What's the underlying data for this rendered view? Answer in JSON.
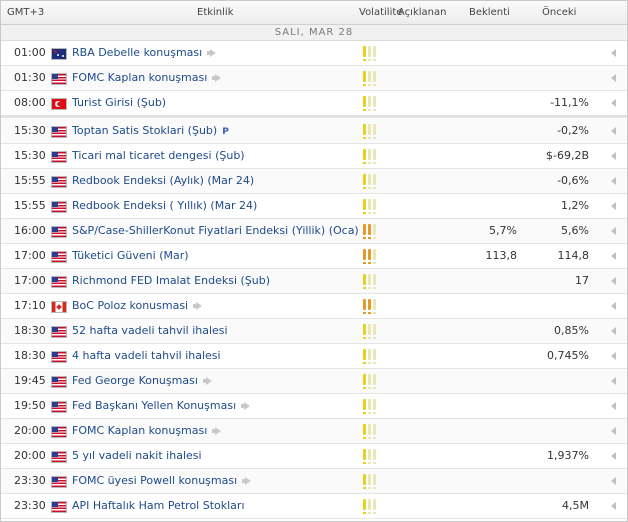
{
  "header": {
    "gmt": "GMT+3",
    "event": "Etkinlik",
    "volatility": "Volatilite",
    "actual": "Açıklanan",
    "forecast": "Beklenti",
    "previous": "Önceki"
  },
  "day_label": "SALI, MAR 28",
  "colors": {
    "event_link": "#1f4a8a",
    "volatility_low": "#e6d21a",
    "volatility_medium": "#e59a2a",
    "volatility_inactive": "#e9e6b8"
  },
  "events": [
    {
      "time": "01:00",
      "flag": "au",
      "name": "RBA Debelle konuşması",
      "speech": true,
      "volatility": 1,
      "level": "low",
      "forecast": "",
      "previous": ""
    },
    {
      "time": "01:30",
      "flag": "us",
      "name": "FOMC Kaplan konuşması",
      "speech": true,
      "volatility": 1,
      "level": "low",
      "forecast": "",
      "previous": ""
    },
    {
      "time": "08:00",
      "flag": "tr",
      "name": "Turist Girisi (Şub)",
      "speech": false,
      "volatility": 1,
      "level": "low",
      "forecast": "",
      "previous": "-11,1%"
    },
    {
      "time": "15:30",
      "flag": "us",
      "name": "Toptan Satis Stoklari (Şub)",
      "speech": false,
      "prelim": "P",
      "volatility": 1,
      "level": "low",
      "forecast": "",
      "previous": "-0,2%"
    },
    {
      "time": "15:30",
      "flag": "us",
      "name": "Ticari mal ticaret dengesi (Şub)",
      "speech": false,
      "volatility": 1,
      "level": "low",
      "forecast": "",
      "previous": "$-69,2B"
    },
    {
      "time": "15:55",
      "flag": "us",
      "name": "Redbook Endeksi (Aylık) (Mar 24)",
      "speech": false,
      "volatility": 1,
      "level": "low",
      "forecast": "",
      "previous": "-0,6%"
    },
    {
      "time": "15:55",
      "flag": "us",
      "name": "Redbook Endeksi ( Yıllık) (Mar 24)",
      "speech": false,
      "volatility": 1,
      "level": "low",
      "forecast": "",
      "previous": "1,2%"
    },
    {
      "time": "16:00",
      "flag": "us",
      "name": "S&P/Case-ShillerKonut Fiyatlari Endeksi (Yillik) (Oca)",
      "speech": false,
      "volatility": 2,
      "level": "med",
      "forecast": "5,7%",
      "previous": "5,6%"
    },
    {
      "time": "17:00",
      "flag": "us",
      "name": "Tüketici Güveni (Mar)",
      "speech": false,
      "volatility": 2,
      "level": "med",
      "forecast": "113,8",
      "previous": "114,8"
    },
    {
      "time": "17:00",
      "flag": "us",
      "name": "Richmond FED Imalat Endeksi (Şub)",
      "speech": false,
      "volatility": 1,
      "level": "low",
      "forecast": "",
      "previous": "17"
    },
    {
      "time": "17:10",
      "flag": "ca",
      "name": "BoC Poloz konusmasi",
      "speech": true,
      "volatility": 2,
      "level": "med",
      "forecast": "",
      "previous": ""
    },
    {
      "time": "18:30",
      "flag": "us",
      "name": "52 hafta vadeli tahvil ihalesi",
      "speech": false,
      "volatility": 1,
      "level": "low",
      "forecast": "",
      "previous": "0,85%"
    },
    {
      "time": "18:30",
      "flag": "us",
      "name": "4 hafta vadeli tahvil ihalesi",
      "speech": false,
      "volatility": 1,
      "level": "low",
      "forecast": "",
      "previous": "0,745%"
    },
    {
      "time": "19:45",
      "flag": "us",
      "name": "Fed George Konuşması",
      "speech": true,
      "volatility": 1,
      "level": "low",
      "forecast": "",
      "previous": ""
    },
    {
      "time": "19:50",
      "flag": "us",
      "name": "Fed Başkanı Yellen Konuşması",
      "speech": true,
      "volatility": 1,
      "level": "low",
      "forecast": "",
      "previous": ""
    },
    {
      "time": "20:00",
      "flag": "us",
      "name": "FOMC Kaplan konuşması",
      "speech": true,
      "volatility": 1,
      "level": "low",
      "forecast": "",
      "previous": ""
    },
    {
      "time": "20:00",
      "flag": "us",
      "name": "5 yıl vadeli nakit ihalesi",
      "speech": false,
      "volatility": 1,
      "level": "low",
      "forecast": "",
      "previous": "1,937%"
    },
    {
      "time": "23:30",
      "flag": "us",
      "name": "FOMC üyesi Powell konuşması",
      "speech": true,
      "volatility": 1,
      "level": "low",
      "forecast": "",
      "previous": ""
    },
    {
      "time": "23:30",
      "flag": "us",
      "name": "API Haftalık Ham Petrol Stokları",
      "speech": false,
      "volatility": 1,
      "level": "low",
      "forecast": "",
      "previous": "4,5M"
    }
  ]
}
